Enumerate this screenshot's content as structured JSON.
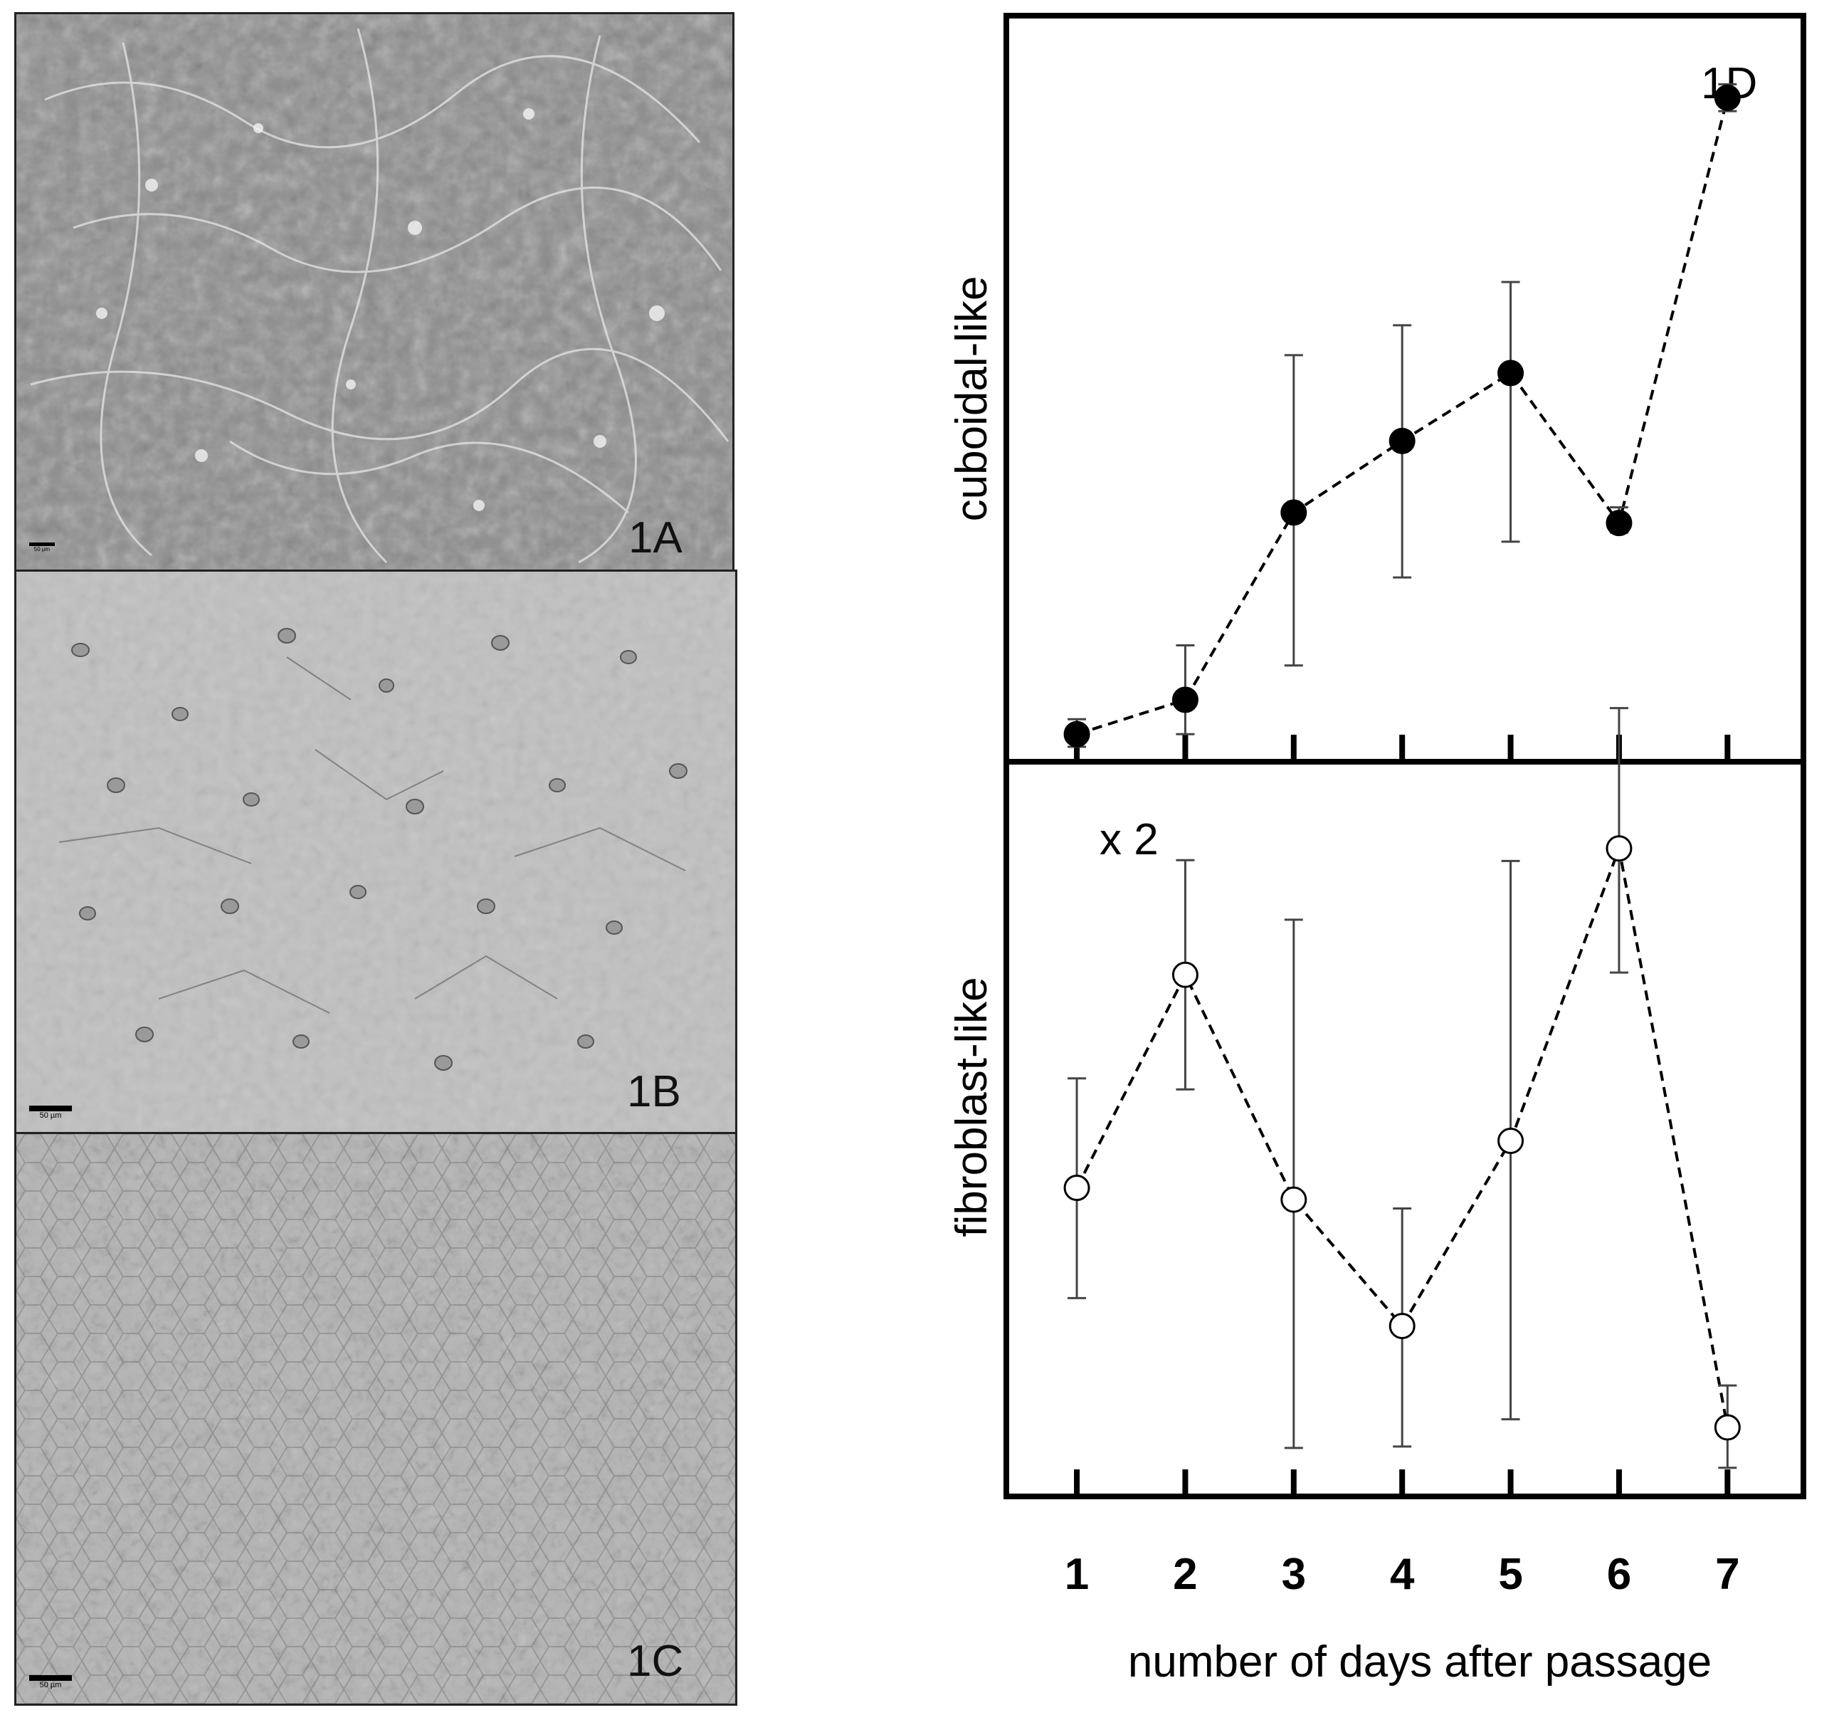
{
  "panels": {
    "a": {
      "label": "1A",
      "scale": "50 µm"
    },
    "b": {
      "label": "1B",
      "scale": "50 µm"
    },
    "c": {
      "label": "1C",
      "scale": "50 µm"
    }
  },
  "chart_data": [
    {
      "type": "line",
      "panel_label": "1D",
      "ylabel": "cuboidal-like",
      "xlabel": "number of days after passage",
      "x": [
        1,
        2,
        3,
        4,
        5,
        6,
        7
      ],
      "xticklabels": [
        "1",
        "2",
        "3",
        "4",
        "5",
        "6",
        "7"
      ],
      "xlim": [
        0.35,
        7.7
      ],
      "ylim": [
        0,
        100
      ],
      "y_tick_labels_shown": false,
      "series": [
        {
          "marker": "filled-circle",
          "line_style": "dashed",
          "color": "#000000",
          "values": [
            3.7,
            8.3,
            33.4,
            43.0,
            52.1,
            32.0,
            89.0
          ],
          "error_low": [
            2.0,
            3.7,
            12.9,
            24.7,
            29.5,
            30.7,
            87.2
          ],
          "error_high": [
            5.7,
            15.6,
            54.5,
            58.5,
            64.3,
            34.1,
            90.8
          ]
        }
      ]
    },
    {
      "type": "line",
      "panel_label": "x 2",
      "ylabel": "fibroblast-like",
      "xlabel": "number of days after passage",
      "x": [
        1,
        2,
        3,
        4,
        5,
        6,
        7
      ],
      "xticklabels": [
        "1",
        "2",
        "3",
        "4",
        "5",
        "6",
        "7"
      ],
      "xlim": [
        0.35,
        7.7
      ],
      "ylim": [
        0,
        100
      ],
      "y_tick_labels_shown": false,
      "series": [
        {
          "marker": "open-circle",
          "line_style": "dashed",
          "color": "#000000",
          "values": [
            42.0,
            71.0,
            40.4,
            23.2,
            48.4,
            88.2,
            9.4
          ],
          "error_low": [
            27.0,
            55.4,
            6.6,
            6.8,
            10.5,
            71.3,
            3.9
          ],
          "error_high": [
            56.9,
            86.6,
            78.5,
            39.2,
            86.5,
            107.3,
            15.1
          ]
        }
      ]
    }
  ]
}
